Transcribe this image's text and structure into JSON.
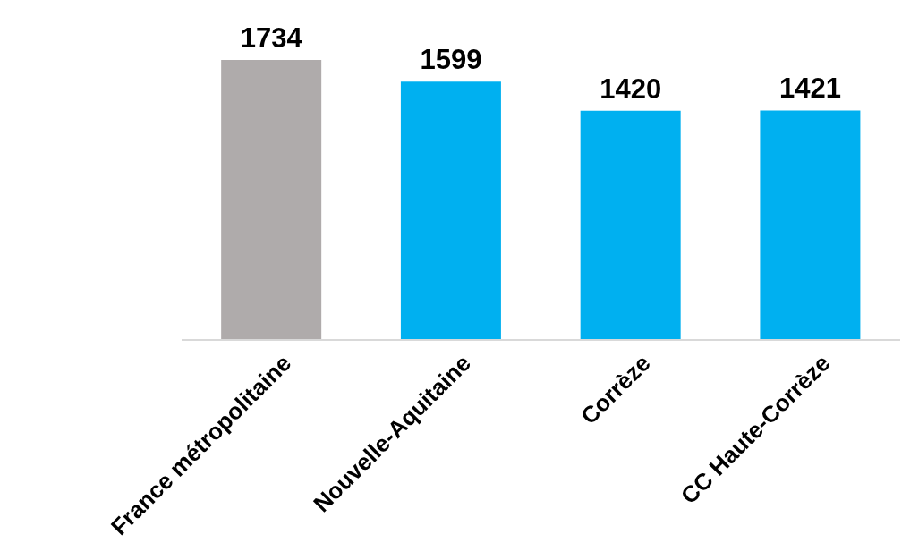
{
  "chart_data": {
    "type": "bar",
    "categories": [
      "France métropolitaine",
      "Nouvelle-Aquitaine",
      "Corrèze",
      "CC Haute-Corrèze"
    ],
    "values": [
      1734,
      1599,
      1420,
      1421
    ],
    "colors": [
      "#afabab",
      "#00b0f0",
      "#00b0f0",
      "#00b0f0"
    ],
    "data_labels": true,
    "grid": false,
    "legend": false
  }
}
